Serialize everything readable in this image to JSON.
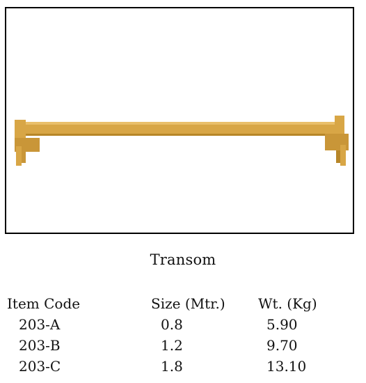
{
  "caption": "Transom",
  "table": {
    "headers": [
      "Item Code",
      "Size (Mtr.)",
      "Wt. (Kg)"
    ],
    "rows": [
      [
        "203-A",
        "0.8",
        "5.90"
      ],
      [
        "203-B",
        "1.2",
        "9.70"
      ],
      [
        "203-C",
        "1.8",
        "13.10"
      ]
    ]
  },
  "colors": {
    "beam": "#d8a646",
    "beam_highlight": "#e9bf6a",
    "beam_shadow": "#b78628"
  }
}
